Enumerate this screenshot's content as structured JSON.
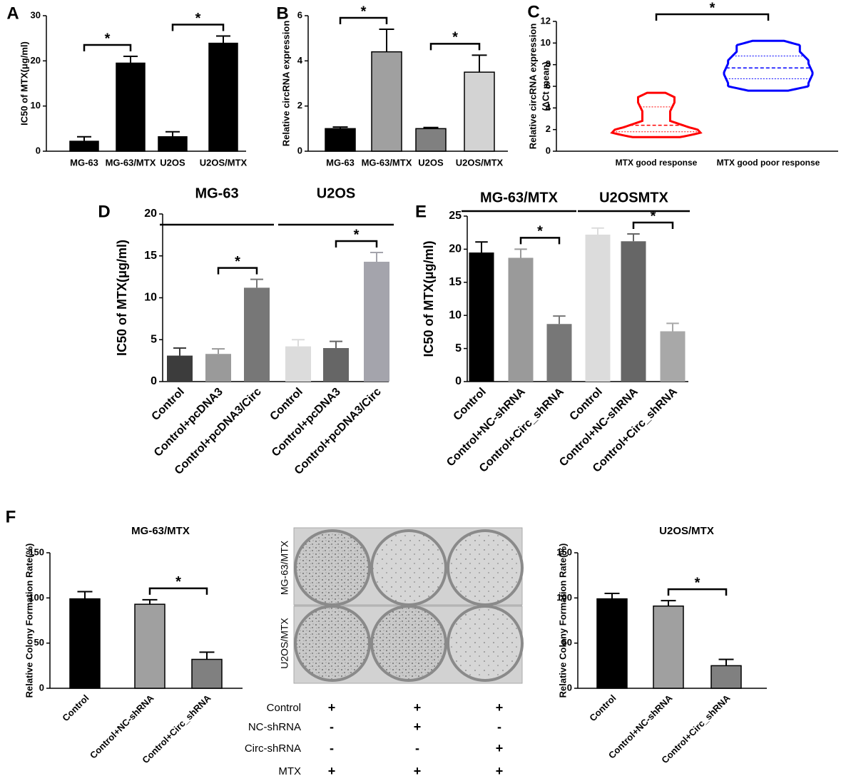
{
  "chart_data": [
    {
      "type": "bar",
      "panel": "A",
      "ylabel": "IC50 of MTX(μg/ml)",
      "categories": [
        "MG-63",
        "MG-63/MTX",
        "U2OS",
        "U2OS/MTX"
      ],
      "values": [
        2.2,
        19.5,
        3.2,
        23.9
      ],
      "errors": [
        1.0,
        1.5,
        1.1,
        1.6
      ],
      "colors": [
        "#000000",
        "#000000",
        "#000000",
        "#000000"
      ],
      "edgecolor": "#000000",
      "ylim": [
        0,
        30
      ],
      "yticks": [
        0,
        10,
        20,
        30
      ],
      "significance": [
        {
          "from": 0,
          "to": 1,
          "label": "*"
        },
        {
          "from": 2,
          "to": 3,
          "label": "*"
        }
      ]
    },
    {
      "type": "bar",
      "panel": "B",
      "ylabel": "Relative circRNA expression",
      "categories": [
        "MG-63",
        "MG-63/MTX",
        "U2OS",
        "U2OS/MTX"
      ],
      "values": [
        1.0,
        4.4,
        1.0,
        3.5
      ],
      "errors": [
        0.07,
        1.0,
        0.05,
        0.75
      ],
      "colors": [
        "#000000",
        "#a0a0a0",
        "#808080",
        "#d3d3d3"
      ],
      "edgecolor": "#000000",
      "ylim": [
        0,
        6
      ],
      "yticks": [
        0,
        2,
        4,
        6
      ],
      "significance": [
        {
          "from": 0,
          "to": 1,
          "label": "*"
        },
        {
          "from": 2,
          "to": 3,
          "label": "*"
        }
      ]
    },
    {
      "type": "violin",
      "panel": "C",
      "ylabel": [
        "Relative circRNA expression",
        "(ΔCt mean)"
      ],
      "categories": [
        "MTX good response",
        "MTX good poor response"
      ],
      "violins": [
        {
          "color": "#ff0000",
          "min": 1.3,
          "q1": 1.8,
          "median": 2.4,
          "q3": 4.1,
          "max": 5.4
        },
        {
          "color": "#0000ff",
          "min": 5.6,
          "q1": 6.7,
          "median": 7.7,
          "q3": 8.8,
          "max": 10.2
        }
      ],
      "ylim": [
        0,
        12
      ],
      "yticks": [
        0,
        2,
        4,
        6,
        8,
        10,
        12
      ],
      "significance": [
        {
          "from": 0,
          "to": 1,
          "label": "*"
        }
      ]
    },
    {
      "type": "bar",
      "panel": "D",
      "ylabel": "IC50 of MTX(μg/ml)",
      "groups": [
        {
          "label": "MG-63",
          "from": 0,
          "to": 2
        },
        {
          "label": "U2OS",
          "from": 3,
          "to": 5
        }
      ],
      "categories": [
        "Control",
        "Control+pcDNA3",
        "Control+pcDNA3/Circ",
        "Control",
        "Control+pcDNA3",
        "Control+pcDNA3/Circ"
      ],
      "values": [
        3.1,
        3.3,
        11.2,
        4.2,
        4.0,
        14.3
      ],
      "errors": [
        0.9,
        0.6,
        1.0,
        0.8,
        0.8,
        1.1
      ],
      "colors": [
        "#3c3c3c",
        "#9a9a9a",
        "#777777",
        "#dcdcdc",
        "#666666",
        "#a4a4ac"
      ],
      "ylim": [
        0,
        20
      ],
      "yticks": [
        0,
        5,
        10,
        15,
        20
      ],
      "significance": [
        {
          "from": 1,
          "to": 2,
          "label": "*"
        },
        {
          "from": 4,
          "to": 5,
          "label": "*"
        }
      ]
    },
    {
      "type": "bar",
      "panel": "E",
      "ylabel": "IC50 of MTX(μg/ml)",
      "groups": [
        {
          "label": "MG-63/MTX",
          "from": 0,
          "to": 2
        },
        {
          "label": "U2OSMTX",
          "from": 3,
          "to": 5
        }
      ],
      "categories": [
        "Control",
        "Control+NC-shRNA",
        "Control+Circ_shRNA",
        "Control",
        "Control+NC-shRNA",
        "Control+Circ_shRNA"
      ],
      "values": [
        19.5,
        18.7,
        8.7,
        22.2,
        21.2,
        7.6
      ],
      "errors": [
        1.6,
        1.3,
        1.2,
        1.0,
        1.1,
        1.2
      ],
      "colors": [
        "#000000",
        "#9a9a9a",
        "#777777",
        "#dcdcdc",
        "#666666",
        "#a8a8a8"
      ],
      "ylim": [
        0,
        25
      ],
      "yticks": [
        0,
        5,
        10,
        15,
        20,
        25
      ],
      "significance": [
        {
          "from": 1,
          "to": 2,
          "label": "*"
        },
        {
          "from": 4,
          "to": 5,
          "label": "*"
        }
      ]
    },
    {
      "type": "bar",
      "panel": "F",
      "title": "MG-63/MTX",
      "ylabel": "Relative Colony Formation Rate(%)",
      "categories": [
        "Control",
        "Control+NC-shRNA",
        "Control+Circ_shRNA"
      ],
      "values": [
        99,
        93,
        32
      ],
      "errors": [
        8,
        5,
        8
      ],
      "colors": [
        "#000000",
        "#a0a0a0",
        "#808080"
      ],
      "edgecolor": "#000000",
      "ylim": [
        0,
        150
      ],
      "yticks": [
        0,
        50,
        100,
        150
      ],
      "significance": [
        {
          "from": 1,
          "to": 2,
          "label": "*"
        }
      ]
    },
    {
      "type": "bar",
      "title": "U2OS/MTX",
      "ylabel": "Relative Colony Formation Rate(%)",
      "categories": [
        "Control",
        "Control+NC-shRNA",
        "Control+Circ_shRNA"
      ],
      "values": [
        99,
        91,
        25
      ],
      "errors": [
        6,
        6,
        7
      ],
      "colors": [
        "#000000",
        "#a0a0a0",
        "#808080"
      ],
      "edgecolor": "#000000",
      "ylim": [
        0,
        150
      ],
      "yticks": [
        0,
        50,
        100,
        150
      ],
      "significance": [
        {
          "from": 1,
          "to": 2,
          "label": "*"
        }
      ]
    }
  ],
  "colony_image": {
    "row_labels": [
      "MG-63/MTX",
      "U2OS/MTX"
    ]
  },
  "treatment_table": {
    "rows": [
      {
        "label": "Control",
        "marks": [
          "+",
          "+",
          "+"
        ]
      },
      {
        "label": "NC-shRNA",
        "marks": [
          "-",
          "+",
          "-"
        ]
      },
      {
        "label": "Circ-shRNA",
        "marks": [
          "-",
          "-",
          "+"
        ]
      },
      {
        "label": "MTX",
        "marks": [
          "+",
          "+",
          "+"
        ]
      }
    ]
  }
}
